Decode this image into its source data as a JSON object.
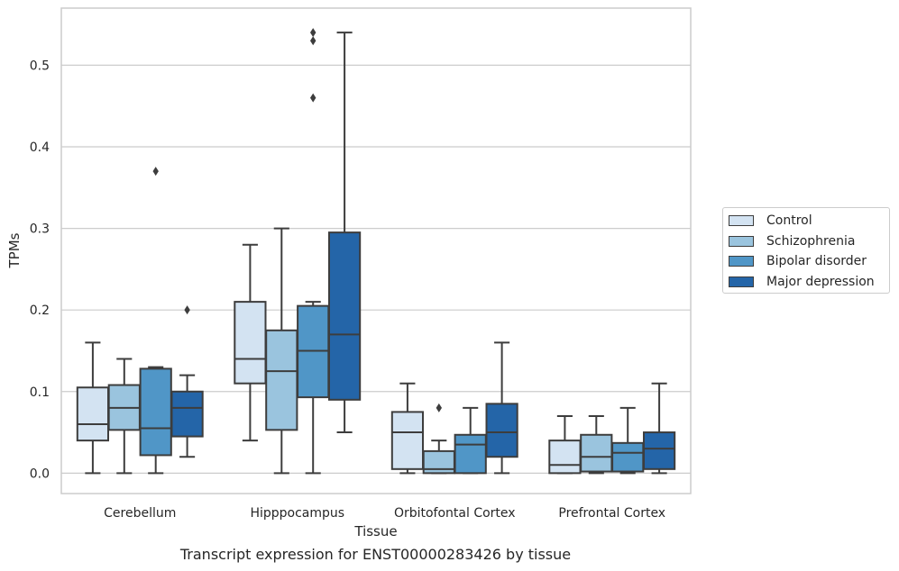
{
  "caption": "Transcript expression for ENST00000283426 by tissue",
  "chart_data": {
    "type": "box",
    "xlabel": "Tissue",
    "ylabel": "TPMs",
    "ylim": [
      -0.025,
      0.57
    ],
    "yticks": [
      "0.0",
      "0.1",
      "0.2",
      "0.3",
      "0.4",
      "0.5"
    ],
    "ytick_values": [
      0.0,
      0.1,
      0.2,
      0.3,
      0.4,
      0.5
    ],
    "grid": "horizontal",
    "legend_position": "right",
    "categories": [
      "Cerebellum",
      "Hipppocampus",
      "Orbitofontal Cortex",
      "Prefrontal Cortex"
    ],
    "series": [
      {
        "name": "Control",
        "color": "#d3e3f2",
        "boxes": [
          {
            "whisker_low": 0.0,
            "q1": 0.04,
            "median": 0.06,
            "q3": 0.105,
            "whisker_high": 0.16,
            "outliers": []
          },
          {
            "whisker_low": 0.04,
            "q1": 0.11,
            "median": 0.14,
            "q3": 0.21,
            "whisker_high": 0.28,
            "outliers": []
          },
          {
            "whisker_low": 0.0,
            "q1": 0.005,
            "median": 0.05,
            "q3": 0.075,
            "whisker_high": 0.11,
            "outliers": []
          },
          {
            "whisker_low": 0.0,
            "q1": 0.0,
            "median": 0.01,
            "q3": 0.04,
            "whisker_high": 0.07,
            "outliers": []
          }
        ]
      },
      {
        "name": "Schizophrenia",
        "color": "#9ac4de",
        "boxes": [
          {
            "whisker_low": 0.0,
            "q1": 0.053,
            "median": 0.08,
            "q3": 0.108,
            "whisker_high": 0.14,
            "outliers": []
          },
          {
            "whisker_low": 0.0,
            "q1": 0.053,
            "median": 0.125,
            "q3": 0.175,
            "whisker_high": 0.3,
            "outliers": []
          },
          {
            "whisker_low": 0.0,
            "q1": 0.0,
            "median": 0.005,
            "q3": 0.027,
            "whisker_high": 0.04,
            "outliers": [
              0.08
            ]
          },
          {
            "whisker_low": 0.0,
            "q1": 0.002,
            "median": 0.02,
            "q3": 0.047,
            "whisker_high": 0.07,
            "outliers": []
          }
        ]
      },
      {
        "name": "Bipolar disorder",
        "color": "#5096c7",
        "boxes": [
          {
            "whisker_low": 0.0,
            "q1": 0.022,
            "median": 0.055,
            "q3": 0.128,
            "whisker_high": 0.13,
            "outliers": [
              0.37
            ]
          },
          {
            "whisker_low": 0.0,
            "q1": 0.093,
            "median": 0.15,
            "q3": 0.205,
            "whisker_high": 0.21,
            "outliers": [
              0.46,
              0.53,
              0.54
            ]
          },
          {
            "whisker_low": 0.0,
            "q1": 0.0,
            "median": 0.035,
            "q3": 0.047,
            "whisker_high": 0.08,
            "outliers": []
          },
          {
            "whisker_low": 0.0,
            "q1": 0.002,
            "median": 0.025,
            "q3": 0.037,
            "whisker_high": 0.08,
            "outliers": []
          }
        ]
      },
      {
        "name": "Major depression",
        "color": "#2465a8",
        "boxes": [
          {
            "whisker_low": 0.02,
            "q1": 0.045,
            "median": 0.08,
            "q3": 0.1,
            "whisker_high": 0.12,
            "outliers": [
              0.2
            ]
          },
          {
            "whisker_low": 0.05,
            "q1": 0.09,
            "median": 0.17,
            "q3": 0.295,
            "whisker_high": 0.54,
            "outliers": []
          },
          {
            "whisker_low": 0.0,
            "q1": 0.02,
            "median": 0.05,
            "q3": 0.085,
            "whisker_high": 0.16,
            "outliers": []
          },
          {
            "whisker_low": 0.0,
            "q1": 0.005,
            "median": 0.03,
            "q3": 0.05,
            "whisker_high": 0.11,
            "outliers": []
          }
        ]
      }
    ]
  }
}
